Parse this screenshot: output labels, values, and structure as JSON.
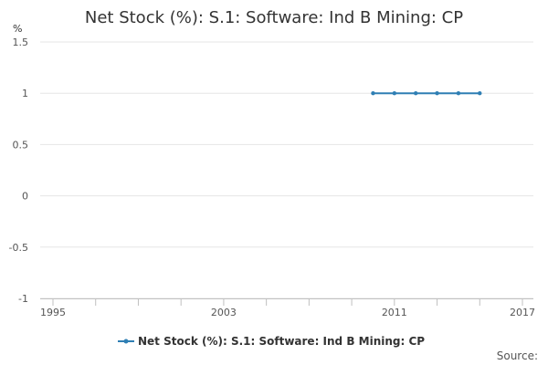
{
  "chart_data": {
    "type": "line",
    "title": "Net Stock (%): S.1: Software: Ind B Mining: CP",
    "ylabel": "%",
    "xlabel": "",
    "ylim": [
      -1,
      1.5
    ],
    "xlim": [
      1995,
      2017
    ],
    "y_ticks": [
      1.5,
      1,
      0.5,
      0,
      -0.5,
      -1
    ],
    "y_tick_labels": [
      "1.5",
      "1",
      "0.5",
      "0",
      "-0.5",
      "-1"
    ],
    "x_ticks": [
      1995,
      2003,
      2011,
      2017
    ],
    "x_tick_labels": [
      "1995",
      "2003",
      "2011",
      "2017"
    ],
    "x_minor_ticks": [
      1995,
      1997,
      1999,
      2001,
      2003,
      2005,
      2007,
      2009,
      2011,
      2013,
      2015,
      2017
    ],
    "grid": "horizontal",
    "legend_position": "bottom",
    "series": [
      {
        "name": "Net Stock (%): S.1: Software: Ind B Mining: CP",
        "color": "#2f7fb4",
        "x": [
          2010,
          2011,
          2012,
          2013,
          2014,
          2015
        ],
        "y": [
          1,
          1,
          1,
          1,
          1,
          1
        ]
      }
    ]
  },
  "footer": {
    "source_label": "Source:"
  }
}
